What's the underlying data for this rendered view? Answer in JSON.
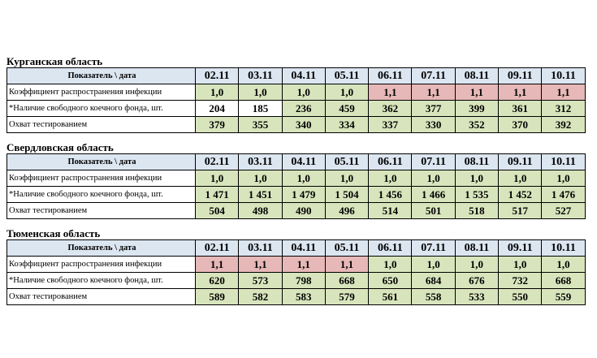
{
  "dates": [
    "02.11",
    "03.11",
    "04.11",
    "05.11",
    "06.11",
    "07.11",
    "08.11",
    "09.11",
    "10.11"
  ],
  "header_label": "Показатель \\ дата",
  "colors": {
    "header": "#dce6f1",
    "green": "#d8e4bc",
    "red": "#e6b8b7",
    "white": "#ffffff"
  },
  "regions": [
    {
      "title": "Курганская область",
      "rows": [
        {
          "label": "Коэффициент распространения инфекции",
          "values": [
            "1,0",
            "1,0",
            "1,0",
            "1,0",
            "1,1",
            "1,1",
            "1,1",
            "1,1",
            "1,1"
          ],
          "fills": [
            "green",
            "green",
            "green",
            "green",
            "red",
            "red",
            "red",
            "red",
            "red"
          ]
        },
        {
          "label": "*Наличие свободного коечного фонда, шт.",
          "values": [
            "204",
            "185",
            "236",
            "459",
            "362",
            "377",
            "399",
            "361",
            "312"
          ],
          "fills": [
            "white",
            "white",
            "green",
            "green",
            "green",
            "green",
            "green",
            "green",
            "green"
          ]
        },
        {
          "label": "Охват тестированием",
          "values": [
            "379",
            "355",
            "340",
            "334",
            "337",
            "330",
            "352",
            "370",
            "392"
          ],
          "fills": [
            "green",
            "green",
            "green",
            "green",
            "green",
            "green",
            "green",
            "green",
            "green"
          ]
        }
      ]
    },
    {
      "title": "Свердловская область",
      "rows": [
        {
          "label": "Коэффициент распространения инфекции",
          "values": [
            "1,0",
            "1,0",
            "1,0",
            "1,0",
            "1,0",
            "1,0",
            "1,0",
            "1,0",
            "1,0"
          ],
          "fills": [
            "green",
            "green",
            "green",
            "green",
            "green",
            "green",
            "green",
            "green",
            "green"
          ]
        },
        {
          "label": "*Наличие свободного коечного фонда, шт.",
          "values": [
            "1 471",
            "1 451",
            "1 479",
            "1 504",
            "1 456",
            "1 466",
            "1 535",
            "1 452",
            "1 476"
          ],
          "fills": [
            "green",
            "green",
            "green",
            "green",
            "green",
            "green",
            "green",
            "green",
            "green"
          ]
        },
        {
          "label": "Охват тестированием",
          "values": [
            "504",
            "498",
            "490",
            "496",
            "514",
            "501",
            "518",
            "517",
            "527"
          ],
          "fills": [
            "green",
            "green",
            "green",
            "green",
            "green",
            "green",
            "green",
            "green",
            "green"
          ]
        }
      ]
    },
    {
      "title": "Тюменская область",
      "rows": [
        {
          "label": "Коэффициент распространения инфекции",
          "values": [
            "1,1",
            "1,1",
            "1,1",
            "1,1",
            "1,0",
            "1,0",
            "1,0",
            "1,0",
            "1,0"
          ],
          "fills": [
            "red",
            "red",
            "red",
            "red",
            "green",
            "green",
            "green",
            "green",
            "green"
          ]
        },
        {
          "label": "*Наличие свободного коечного фонда, шт.",
          "values": [
            "620",
            "573",
            "798",
            "668",
            "650",
            "684",
            "676",
            "732",
            "668"
          ],
          "fills": [
            "green",
            "green",
            "green",
            "green",
            "green",
            "green",
            "green",
            "green",
            "green"
          ]
        },
        {
          "label": "Охват тестированием",
          "values": [
            "589",
            "582",
            "583",
            "579",
            "561",
            "558",
            "533",
            "550",
            "559"
          ],
          "fills": [
            "green",
            "green",
            "green",
            "green",
            "green",
            "green",
            "green",
            "green",
            "green"
          ]
        }
      ]
    }
  ]
}
